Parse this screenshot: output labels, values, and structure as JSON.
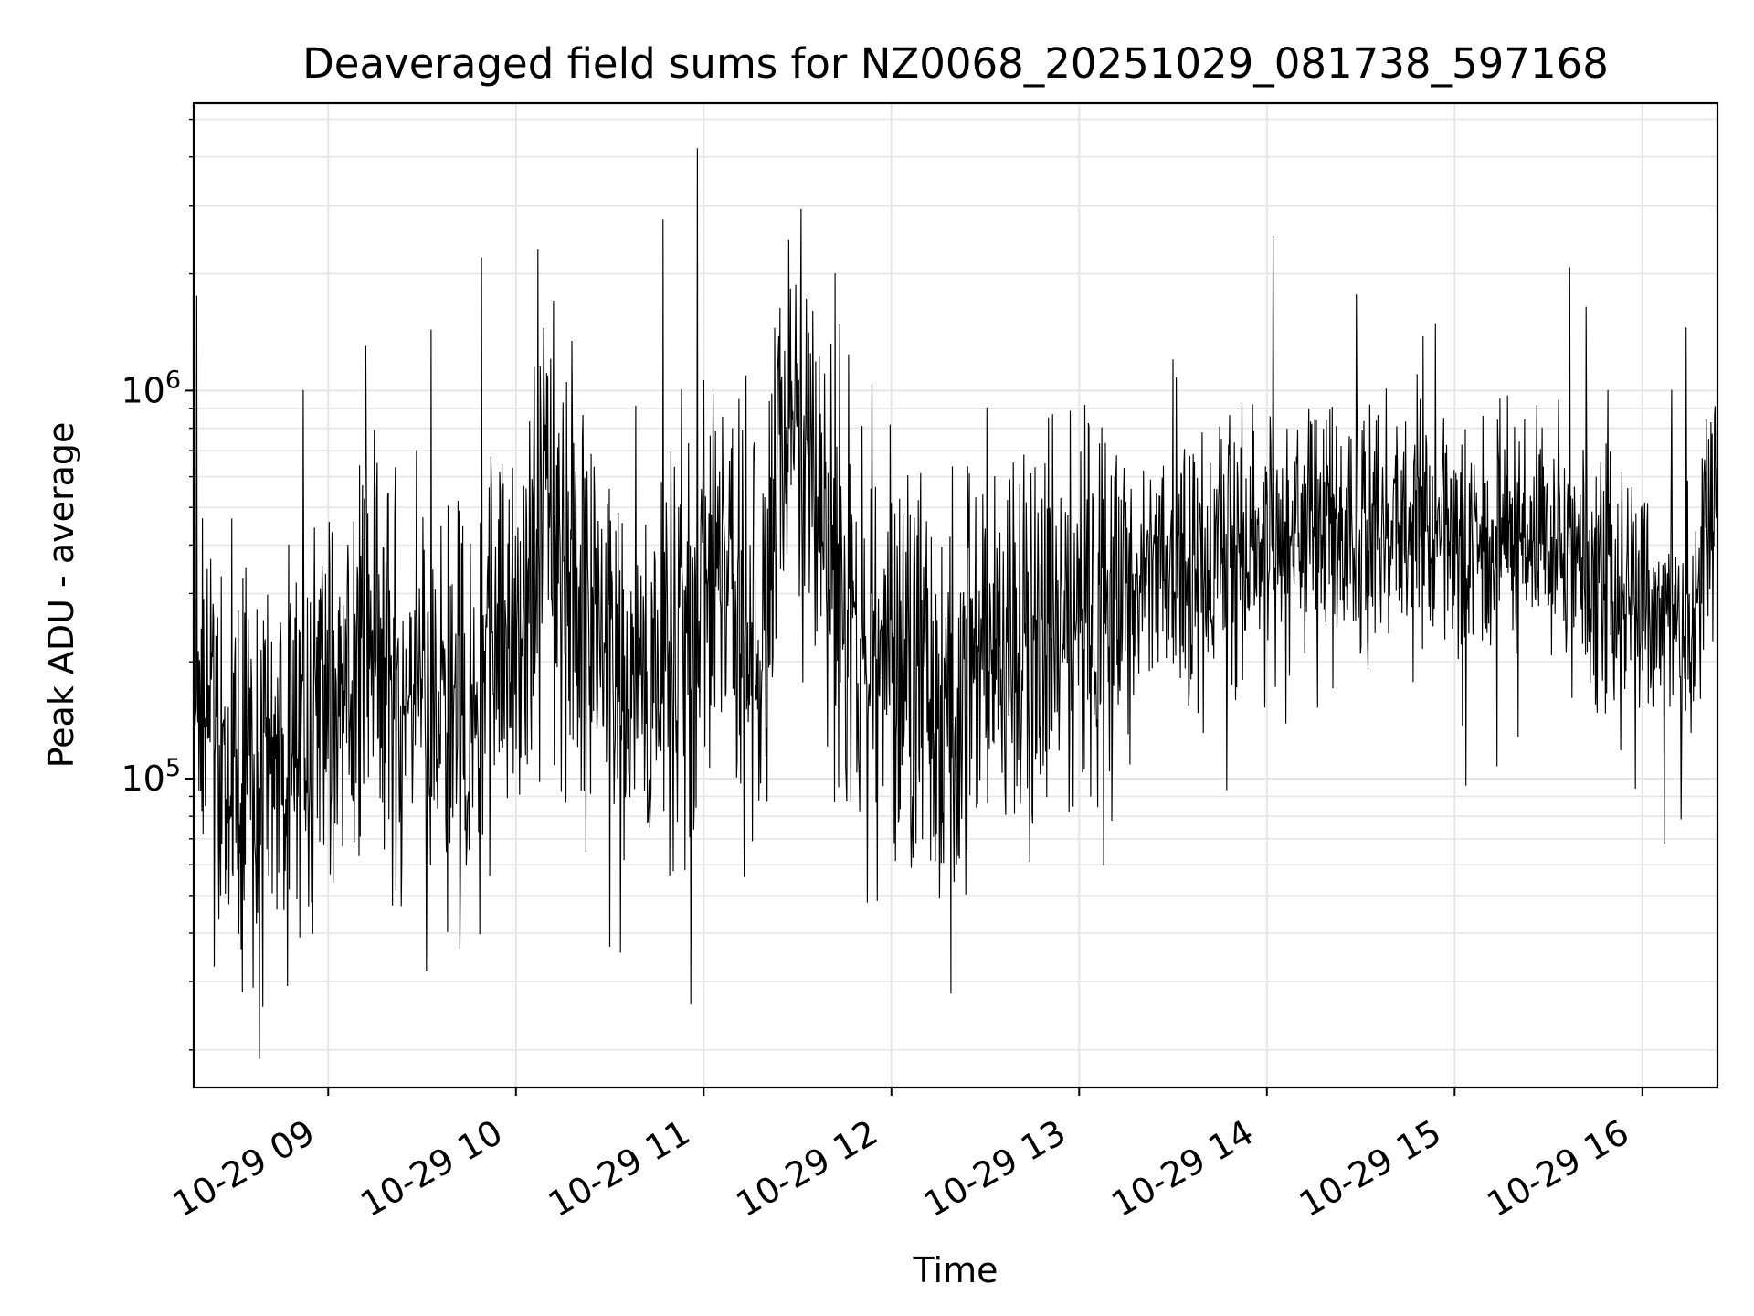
{
  "chart_data": {
    "type": "line",
    "title": "Deaveraged field sums for NZ0068_20251029_081738_597168",
    "xlabel": "Time",
    "ylabel": "Peak ADU - average",
    "yscale": "log",
    "ylim": [
      16000,
      5500000
    ],
    "xlim": [
      "2025-10-29 08:17",
      "2025-10-29 16:24"
    ],
    "grid": true,
    "line_color": "#000000",
    "grid_color": "#e6e6e6",
    "x_ticks": [
      {
        "t": "2025-10-29 09:00",
        "label": "10-29 09"
      },
      {
        "t": "2025-10-29 10:00",
        "label": "10-29 10"
      },
      {
        "t": "2025-10-29 11:00",
        "label": "10-29 11"
      },
      {
        "t": "2025-10-29 12:00",
        "label": "10-29 12"
      },
      {
        "t": "2025-10-29 13:00",
        "label": "10-29 13"
      },
      {
        "t": "2025-10-29 14:00",
        "label": "10-29 14"
      },
      {
        "t": "2025-10-29 15:00",
        "label": "10-29 15"
      },
      {
        "t": "2025-10-29 16:00",
        "label": "10-29 16"
      }
    ],
    "y_ticks": [
      {
        "value": 100000,
        "base": "10",
        "exp": "5"
      },
      {
        "value": 1000000,
        "base": "10",
        "exp": "6"
      }
    ],
    "series": [
      {
        "x": [
          "2025-10-29 08:17",
          "2025-10-29 08:20",
          "2025-10-29 08:25",
          "2025-10-29 08:30",
          "2025-10-29 08:35",
          "2025-10-29 08:40",
          "2025-10-29 08:45",
          "2025-10-29 08:50",
          "2025-10-29 08:55",
          "2025-10-29 09:00",
          "2025-10-29 09:05",
          "2025-10-29 09:10",
          "2025-10-29 09:15",
          "2025-10-29 09:20",
          "2025-10-29 09:25",
          "2025-10-29 09:30",
          "2025-10-29 09:35",
          "2025-10-29 09:40",
          "2025-10-29 09:45",
          "2025-10-29 09:50",
          "2025-10-29 09:55",
          "2025-10-29 10:00",
          "2025-10-29 10:05",
          "2025-10-29 10:10",
          "2025-10-29 10:15",
          "2025-10-29 10:20",
          "2025-10-29 10:25",
          "2025-10-29 10:30",
          "2025-10-29 10:35",
          "2025-10-29 10:40",
          "2025-10-29 10:45",
          "2025-10-29 10:50",
          "2025-10-29 10:55",
          "2025-10-29 11:00",
          "2025-10-29 11:05",
          "2025-10-29 11:10",
          "2025-10-29 11:15",
          "2025-10-29 11:20",
          "2025-10-29 11:25",
          "2025-10-29 11:30",
          "2025-10-29 11:35",
          "2025-10-29 11:40",
          "2025-10-29 11:45",
          "2025-10-29 11:50",
          "2025-10-29 11:55",
          "2025-10-29 12:00",
          "2025-10-29 12:05",
          "2025-10-29 12:10",
          "2025-10-29 12:15",
          "2025-10-29 12:20",
          "2025-10-29 12:25",
          "2025-10-29 12:30",
          "2025-10-29 12:35",
          "2025-10-29 12:40",
          "2025-10-29 12:45",
          "2025-10-29 12:50",
          "2025-10-29 12:55",
          "2025-10-29 13:00",
          "2025-10-29 13:05",
          "2025-10-29 13:10",
          "2025-10-29 13:15",
          "2025-10-29 13:20",
          "2025-10-29 13:25",
          "2025-10-29 13:30",
          "2025-10-29 13:35",
          "2025-10-29 13:40",
          "2025-10-29 13:45",
          "2025-10-29 13:50",
          "2025-10-29 13:55",
          "2025-10-29 14:00",
          "2025-10-29 14:05",
          "2025-10-29 14:10",
          "2025-10-29 14:15",
          "2025-10-29 14:20",
          "2025-10-29 14:25",
          "2025-10-29 14:30",
          "2025-10-29 14:35",
          "2025-10-29 14:40",
          "2025-10-29 14:45",
          "2025-10-29 14:50",
          "2025-10-29 14:55",
          "2025-10-29 15:00",
          "2025-10-29 15:05",
          "2025-10-29 15:10",
          "2025-10-29 15:15",
          "2025-10-29 15:20",
          "2025-10-29 15:25",
          "2025-10-29 15:30",
          "2025-10-29 15:35",
          "2025-10-29 15:40",
          "2025-10-29 15:45",
          "2025-10-29 15:50",
          "2025-10-29 15:55",
          "2025-10-29 16:00",
          "2025-10-29 16:05",
          "2025-10-29 16:10",
          "2025-10-29 16:15",
          "2025-10-29 16:20",
          "2025-10-29 16:24"
        ],
        "y": [
          200000,
          170000,
          150000,
          120000,
          100000,
          95000,
          110000,
          130000,
          140000,
          150000,
          170000,
          200000,
          230000,
          210000,
          180000,
          150000,
          140000,
          120000,
          150000,
          180000,
          240000,
          260000,
          380000,
          500000,
          350000,
          280000,
          240000,
          200000,
          160000,
          150000,
          170000,
          180000,
          220000,
          300000,
          360000,
          280000,
          230000,
          260000,
          700000,
          800000,
          550000,
          450000,
          300000,
          240000,
          210000,
          200000,
          190000,
          180000,
          170000,
          180000,
          190000,
          200000,
          210000,
          220000,
          230000,
          240000,
          250000,
          260000,
          270000,
          290000,
          310000,
          330000,
          340000,
          330000,
          320000,
          330000,
          360000,
          380000,
          390000,
          400000,
          420000,
          430000,
          440000,
          450000,
          460000,
          450000,
          440000,
          440000,
          450000,
          430000,
          420000,
          420000,
          430000,
          440000,
          440000,
          430000,
          420000,
          430000,
          380000,
          350000,
          330000,
          310000,
          300000,
          290000,
          280000,
          270000,
          210000,
          480000,
          560000
        ]
      }
    ],
    "spikes_max": [
      {
        "t": "2025-10-29 08:18",
        "y": 1750000
      },
      {
        "t": "2025-10-29 08:36",
        "y": 29000
      },
      {
        "t": "2025-10-29 08:38",
        "y": 19000
      },
      {
        "t": "2025-10-29 08:52",
        "y": 1000000
      },
      {
        "t": "2025-10-29 09:12",
        "y": 1300000
      },
      {
        "t": "2025-10-29 09:49",
        "y": 2200000
      },
      {
        "t": "2025-10-29 10:07",
        "y": 2300000
      },
      {
        "t": "2025-10-29 10:12",
        "y": 1700000
      },
      {
        "t": "2025-10-29 10:30",
        "y": 37000
      },
      {
        "t": "2025-10-29 10:47",
        "y": 2750000
      },
      {
        "t": "2025-10-29 10:58",
        "y": 4200000
      },
      {
        "t": "2025-10-29 11:31",
        "y": 1900000
      },
      {
        "t": "2025-10-29 11:42",
        "y": 2000000
      },
      {
        "t": "2025-10-29 12:19",
        "y": 28000
      },
      {
        "t": "2025-10-29 12:33",
        "y": 600000
      },
      {
        "t": "2025-10-29 13:30",
        "y": 1200000
      },
      {
        "t": "2025-10-29 14:02",
        "y": 2500000
      },
      {
        "t": "2025-10-29 14:48",
        "y": 1100000
      },
      {
        "t": "2025-10-29 15:49",
        "y": 1000000
      },
      {
        "t": "2025-10-29 16:07",
        "y": 68000
      },
      {
        "t": "2025-10-29 16:14",
        "y": 1450000
      }
    ]
  }
}
